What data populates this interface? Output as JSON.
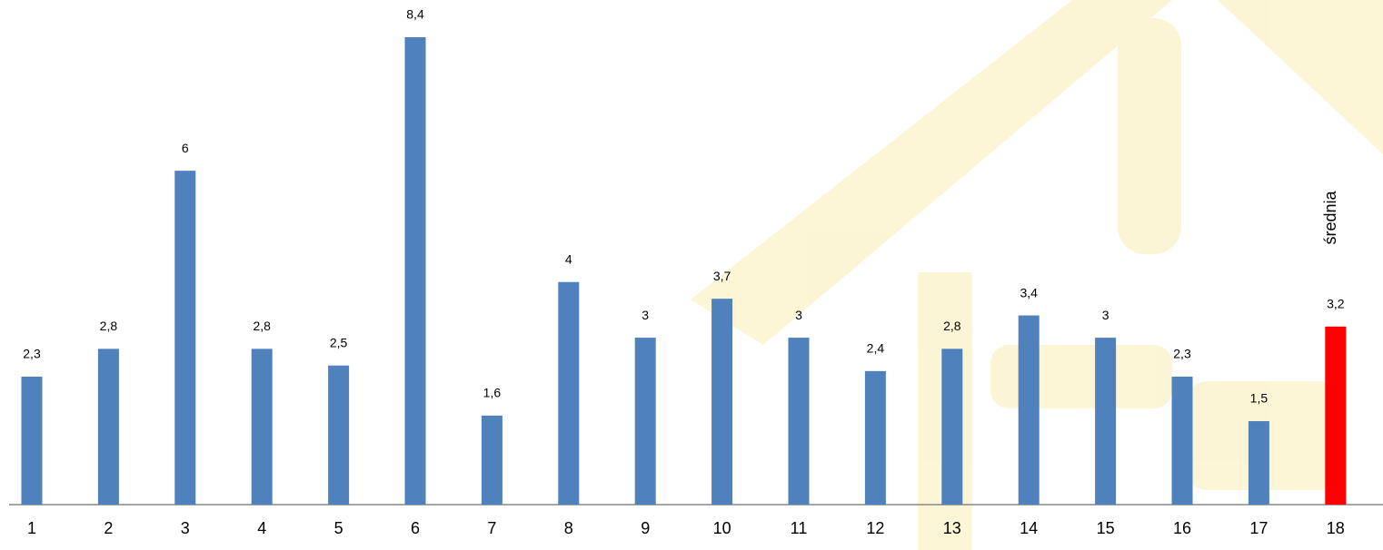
{
  "chart_data": {
    "type": "bar",
    "categories": [
      "1",
      "2",
      "3",
      "4",
      "5",
      "6",
      "7",
      "8",
      "9",
      "10",
      "11",
      "12",
      "13",
      "14",
      "15",
      "16",
      "17",
      "18"
    ],
    "values": [
      2.3,
      2.8,
      6,
      2.8,
      2.5,
      8.4,
      1.6,
      4,
      3,
      3.7,
      3,
      2.4,
      2.8,
      3.4,
      3,
      2.3,
      1.5,
      3.2
    ],
    "value_labels": [
      "2,3",
      "2,8",
      "6",
      "2,8",
      "2,5",
      "8,4",
      "1,6",
      "4",
      "3",
      "3,7",
      "3",
      "2,4",
      "2,8",
      "3,4",
      "3",
      "2,3",
      "1,5",
      "3,2"
    ],
    "colors": [
      "#4f81bd",
      "#4f81bd",
      "#4f81bd",
      "#4f81bd",
      "#4f81bd",
      "#4f81bd",
      "#4f81bd",
      "#4f81bd",
      "#4f81bd",
      "#4f81bd",
      "#4f81bd",
      "#4f81bd",
      "#4f81bd",
      "#4f81bd",
      "#4f81bd",
      "#4f81bd",
      "#4f81bd",
      "#ff0000"
    ],
    "annotation": "średnia"
  }
}
